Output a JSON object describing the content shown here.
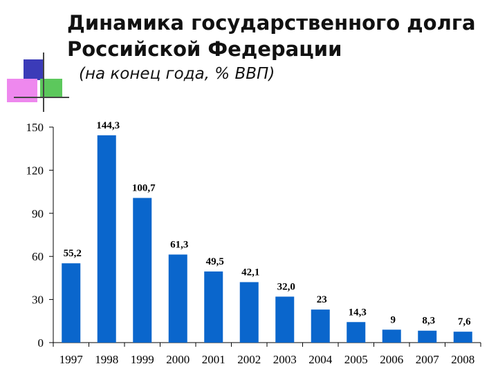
{
  "header": {
    "title": "Динамика государственного долга\nРоссийской Федерации",
    "subtitle": "(на конец года, % ВВП)"
  },
  "colors": {
    "bar": "#0a66cc",
    "accent_blue": "#3b3bb8",
    "accent_pink": "#ee88ee",
    "accent_green": "#5cc85c"
  },
  "chart_data": {
    "type": "bar",
    "title": "Динамика государственного долга Российской Федерации",
    "subtitle": "(на конец года, % ВВП)",
    "xlabel": "",
    "ylabel": "",
    "categories": [
      "1997",
      "1998",
      "1999",
      "2000",
      "2001",
      "2002",
      "2003",
      "2004",
      "2005",
      "2006",
      "2007",
      "2008"
    ],
    "values": [
      55.2,
      144.3,
      100.7,
      61.3,
      49.5,
      42.1,
      32.0,
      23,
      14.3,
      9,
      8.3,
      7.6
    ],
    "data_labels": [
      "55,2",
      "144,3",
      "100,7",
      "61,3",
      "49,5",
      "42,1",
      "32,0",
      "23",
      "14,3",
      "9",
      "8,3",
      "7,6"
    ],
    "ylim": [
      0,
      150
    ],
    "yticks": [
      0,
      30,
      60,
      90,
      120,
      150
    ],
    "grid": false,
    "legend": "none"
  }
}
